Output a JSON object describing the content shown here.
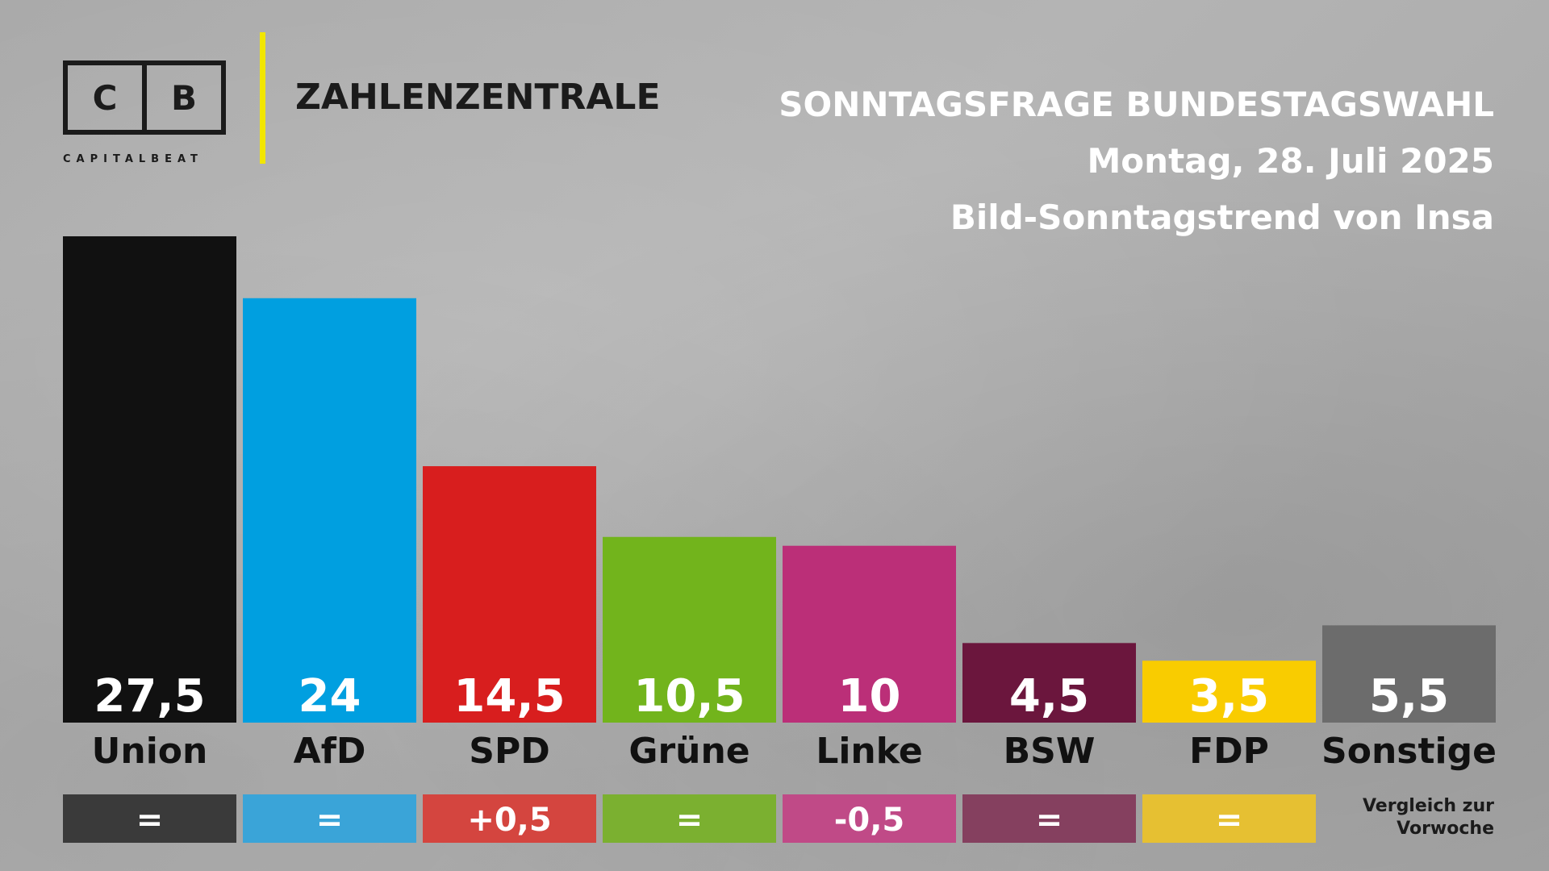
{
  "logo": {
    "letters": [
      "C",
      "B"
    ],
    "subtitle": "CAPITALBEAT"
  },
  "header": {
    "brand": "ZAHLENZENTRALE",
    "title": "SONNTAGSFRAGE BUNDESTAGSWAHL",
    "date": "Montag, 28. Juli 2025",
    "source": "Bild-Sonntagstrend von Insa"
  },
  "colors": {
    "accent_line": "#f2e600",
    "background": "#b0b0b0"
  },
  "chart_data": {
    "type": "bar",
    "categories": [
      "Union",
      "AfD",
      "SPD",
      "Grüne",
      "Linke",
      "BSW",
      "FDP",
      "Sonstige"
    ],
    "values": [
      27.5,
      24,
      14.5,
      10.5,
      10,
      4.5,
      3.5,
      5.5
    ],
    "value_labels": [
      "27,5",
      "24",
      "14,5",
      "10,5",
      "10",
      "4,5",
      "3,5",
      "5,5"
    ],
    "colors": [
      "#111111",
      "#009fe0",
      "#d81e1e",
      "#72b41c",
      "#bb2f78",
      "#6b163d",
      "#f9cc00",
      "#6c6c6c"
    ],
    "change_labels": [
      "=",
      "=",
      "+0,5",
      "=",
      "-0,5",
      "=",
      "="
    ],
    "change_colors": [
      "#3a3a3a",
      "#3aa4d8",
      "#d4453f",
      "#7bb030",
      "#c04a87",
      "#85405f",
      "#e6c032"
    ],
    "change_note": [
      "Vergleich zur",
      "Vorwoche"
    ],
    "ylim": [
      0,
      27.5
    ],
    "grid": false,
    "legend": "none"
  }
}
